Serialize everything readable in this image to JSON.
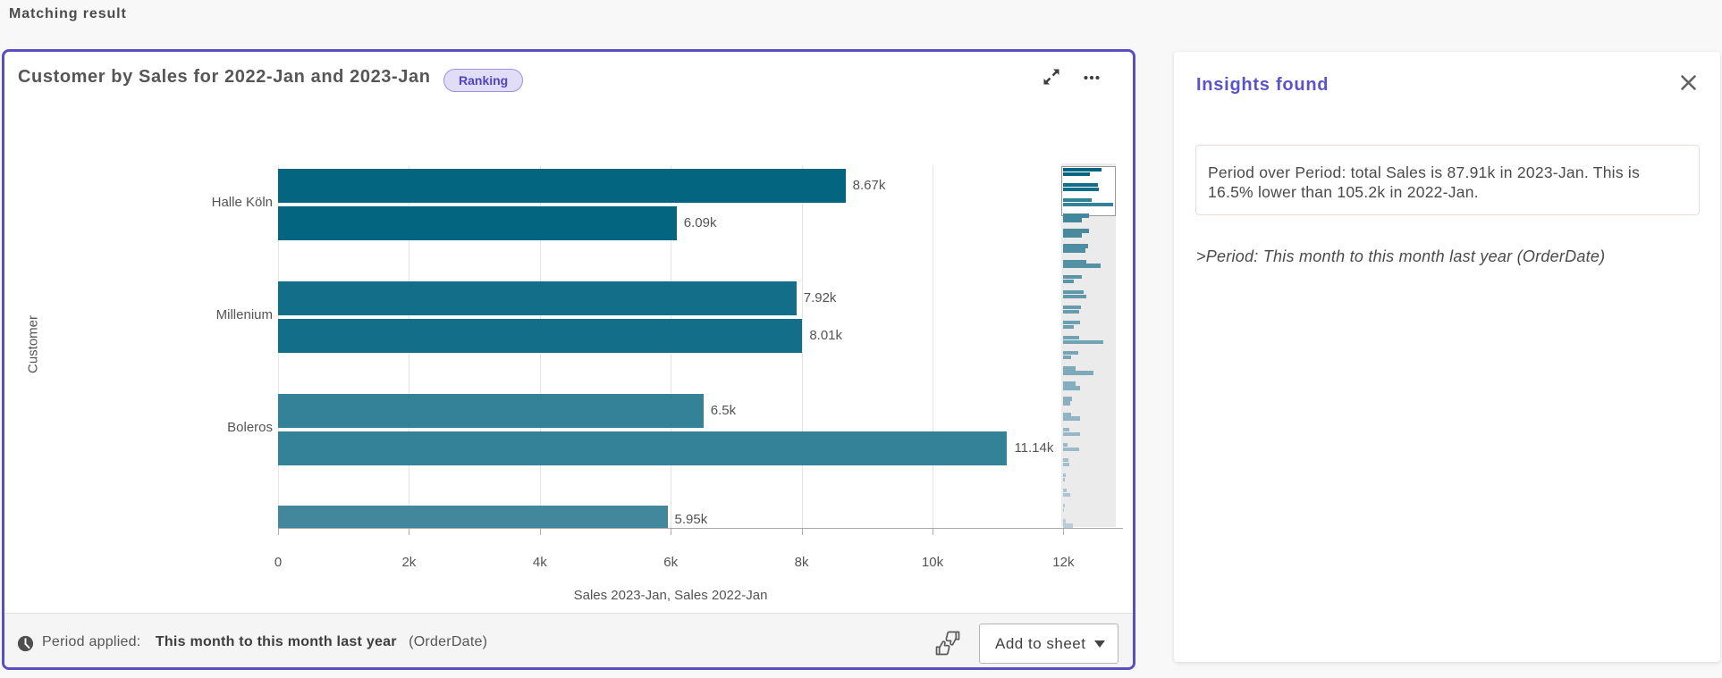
{
  "page": {
    "title": "Matching result",
    "background": "#f8f8f8"
  },
  "card": {
    "title": "Customer by Sales for 2022-Jan and 2023-Jan",
    "badge": "Ranking",
    "border_color": "#5a4fc0",
    "footer": {
      "period_label": "Period applied: ",
      "period_value": " This month to this month last year ",
      "period_field": " (OrderDate)",
      "add_to_sheet_label": "Add to sheet"
    }
  },
  "chart_data": {
    "type": "bar",
    "orientation": "horizontal",
    "title": "Customer by Sales for 2022-Jan and 2023-Jan",
    "xlabel": "Sales 2023-Jan, Sales 2022-Jan",
    "ylabel": "Customer",
    "xlim": [
      0,
      12.9
    ],
    "x_tick_values": [
      0,
      2,
      4,
      6,
      8,
      10,
      12
    ],
    "x_tick_labels": [
      "0",
      "2k",
      "4k",
      "6k",
      "8k",
      "10k",
      "12k"
    ],
    "grid": true,
    "legend": false,
    "categories": [
      "Halle Köln",
      "Millenium",
      "Boleros",
      ""
    ],
    "series": [
      {
        "name": "Sales 2023-Jan",
        "values": [
          8.67,
          7.92,
          6.5,
          5.95
        ]
      },
      {
        "name": "Sales 2022-Jan",
        "values": [
          6.09,
          8.01,
          11.14,
          null
        ]
      }
    ],
    "bar_labels": [
      [
        "8.67k",
        "6.09k"
      ],
      [
        "7.92k",
        "8.01k"
      ],
      [
        "6.5k",
        "11.14k"
      ],
      [
        "5.95k",
        null
      ]
    ],
    "group_colors": [
      "#03657f",
      "#136f89",
      "#348297",
      "#43879c"
    ],
    "minimap_light_color": "#b9ccd8",
    "minimap_pairs": [
      [
        8.67,
        6.09
      ],
      [
        7.92,
        8.01
      ],
      [
        6.5,
        11.14
      ],
      [
        5.95,
        4.3
      ],
      [
        5.8,
        4.3
      ],
      [
        5.6,
        5.05
      ],
      [
        5.2,
        8.5
      ],
      [
        4.3,
        2.4
      ],
      [
        4.7,
        5.2
      ],
      [
        4.0,
        3.6
      ],
      [
        3.9,
        2.55
      ],
      [
        3.6,
        9.0
      ],
      [
        3.5,
        1.9
      ],
      [
        2.9,
        6.8
      ],
      [
        2.8,
        3.8
      ],
      [
        2.0,
        1.7
      ],
      [
        1.9,
        3.8
      ],
      [
        1.5,
        3.9
      ],
      [
        1.1,
        3.7
      ],
      [
        1.35,
        1.5
      ],
      [
        0.75,
        0.5
      ],
      [
        0.95,
        1.6
      ],
      [
        0.4,
        0.3
      ],
      [
        0.6,
        2.2
      ]
    ]
  },
  "insights_panel": {
    "title": "Insights found",
    "insight_lines": [
      "Period over Period: total Sales is 87.91k in 2023-Jan. This is",
      "16.5% lower than 105.2k in 2022-Jan."
    ],
    "insight_text": "Period over Period: total Sales is 87.91k in 2023-Jan. This is 16.5% lower than 105.2k in 2022-Jan.",
    "period_note": ">Period: This month to this month last year (OrderDate)"
  }
}
